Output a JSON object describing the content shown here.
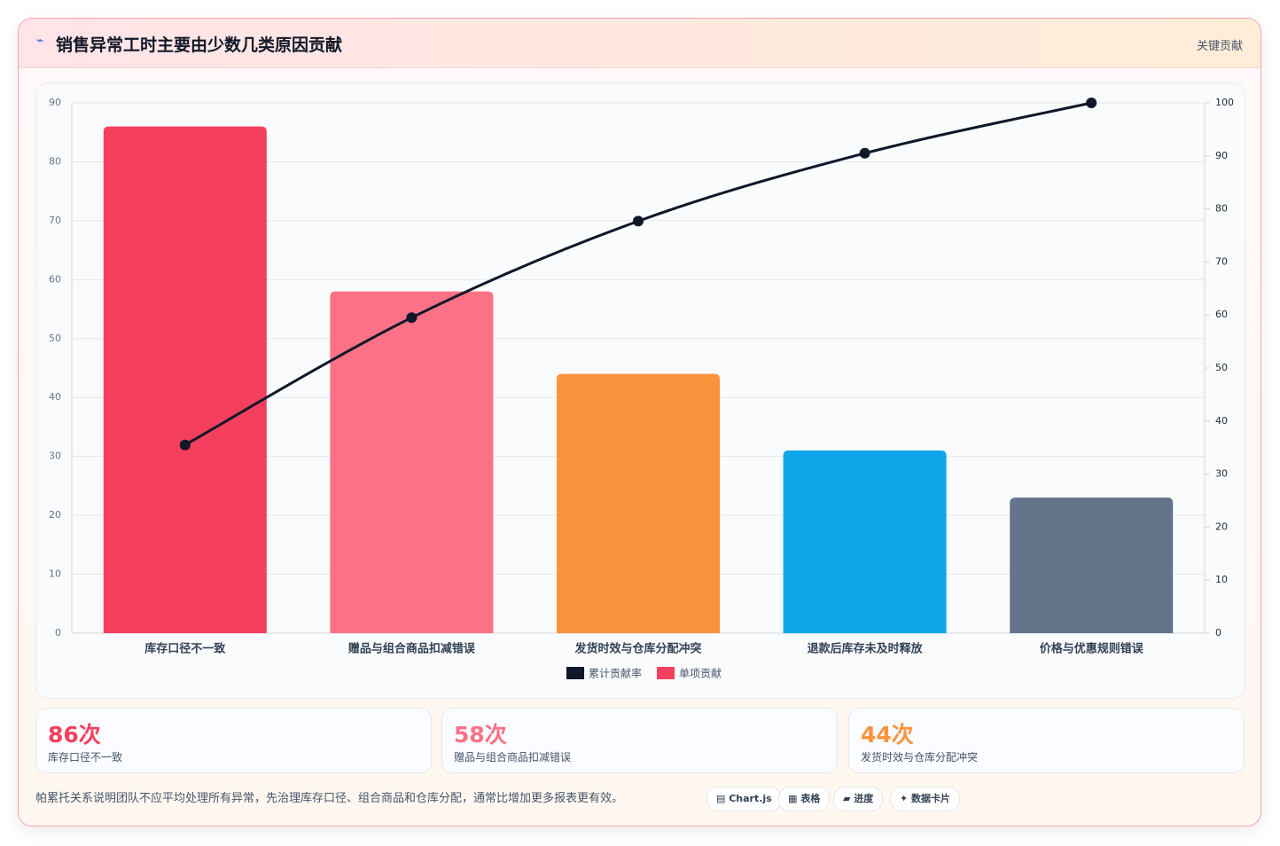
{
  "header": {
    "icon": "⌁",
    "title": "销售异常工时主要由少数几类原因贡献",
    "tag": "关键贡献"
  },
  "chart_data": {
    "type": "pareto",
    "categories": [
      "库存口径不一致",
      "赠品与组合商品扣减错误",
      "发货时效与仓库分配冲突",
      "退款后库存未及时释放",
      "价格与优惠规则错误"
    ],
    "series": [
      {
        "name": "累计贡献率",
        "type": "line",
        "axis": "y2",
        "color": "#0f172a",
        "values": [
          35.5,
          59.5,
          77.7,
          90.5,
          100
        ]
      },
      {
        "name": "单项贡献",
        "type": "bar",
        "colors": [
          "#f43f5e",
          "#fb7185",
          "#fb923c",
          "#0ea5e9",
          "#64748b"
        ],
        "values": [
          86,
          58,
          44,
          31,
          23
        ]
      }
    ],
    "ylim": [
      0,
      90
    ],
    "yticks": [
      0,
      10,
      20,
      30,
      40,
      50,
      60,
      70,
      80,
      90
    ],
    "y2lim": [
      0,
      100
    ],
    "y2ticks": [
      0,
      10,
      20,
      30,
      40,
      50,
      60,
      70,
      80,
      90,
      100
    ],
    "grid": true
  },
  "stats": [
    {
      "value": "86次",
      "label": "库存口径不一致",
      "color": "#f43f5e"
    },
    {
      "value": "58次",
      "label": "赠品与组合商品扣减错误",
      "color": "#fb7185"
    },
    {
      "value": "44次",
      "label": "发货时效与仓库分配冲突",
      "color": "#fb923c"
    }
  ],
  "footer": {
    "note": "帕累托关系说明团队不应平均处理所有异常，先治理库存口径、组合商品和仓库分配，通常比增加更多报表更有效。",
    "chips": [
      "▤ Chart.js",
      "▦ 表格",
      "▰ 进度",
      "✦ 数据卡片"
    ]
  }
}
